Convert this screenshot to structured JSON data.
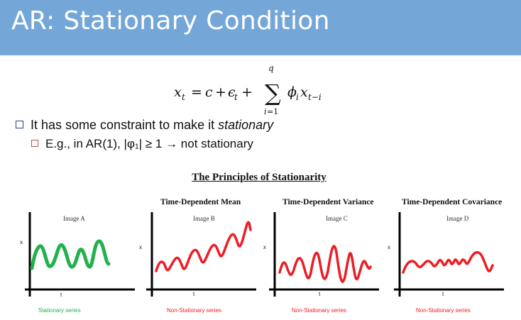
{
  "slide": {
    "title": "AR: Stationary Condition",
    "formula_alt": "x_t = c + ε_t + Σ_{i=1}^{q} φ_i x_{t−i}",
    "bullets": [
      {
        "text_plain": "It has some constraint to make it ",
        "text_italic": "stationary"
      },
      {
        "text": "E.g., in AR(1), |φ₁| ≥ 1 → not stationary"
      }
    ]
  },
  "figure": {
    "heading": "The Principles of Stationarity",
    "axis_y": "x",
    "axis_x": "t",
    "panels": [
      {
        "title": "",
        "image_label": "Image A",
        "caption": "Stationary series",
        "color": "#22b14c"
      },
      {
        "title": "Time-Dependent Mean",
        "image_label": "Image B",
        "caption": "Non-Stationary series",
        "color": "#ee1c24"
      },
      {
        "title": "Time-Dependent Variance",
        "image_label": "Image C",
        "caption": "Non-Stationary series",
        "color": "#ee1c24"
      },
      {
        "title": "Time-Dependent Covariance",
        "image_label": "Image D",
        "caption": "Non-Stationary series",
        "color": "#ee1c24"
      }
    ]
  }
}
